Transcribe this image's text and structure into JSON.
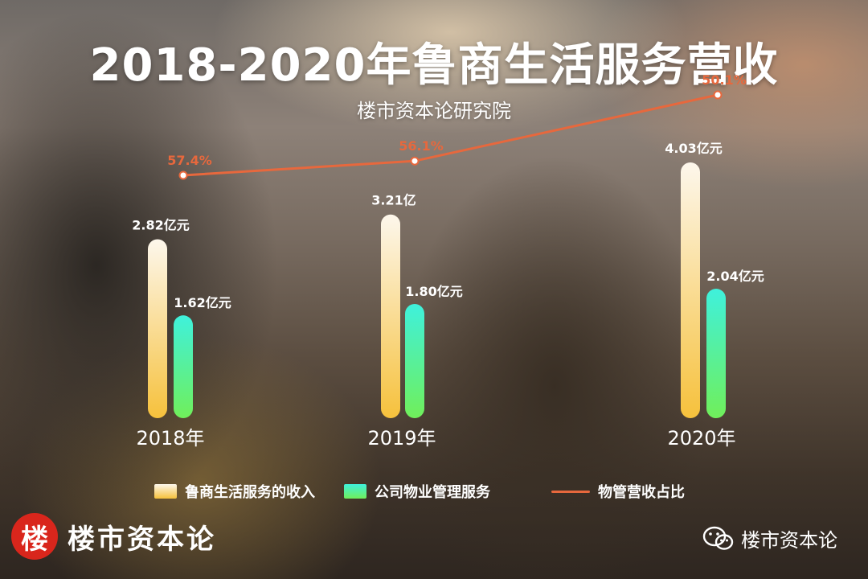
{
  "title": "2018-2020年鲁商生活服务营收",
  "subtitle": "楼市资本论研究院",
  "colors": {
    "revenue_top": "#fdf7ec",
    "revenue_bottom": "#f6c13c",
    "property_top": "#3ff1dc",
    "property_bottom": "#70ef5a",
    "ratio_line": "#e7683d"
  },
  "chart_data": {
    "type": "bar",
    "categories": [
      "2018年",
      "2019年",
      "2020年"
    ],
    "series": [
      {
        "name": "鲁商生活服务的收入",
        "type": "bar",
        "values": [
          2.82,
          3.21,
          4.03
        ],
        "data_labels": [
          "2.82亿元",
          "3.21亿",
          "4.03亿元"
        ]
      },
      {
        "name": "公司物业管理服务",
        "type": "bar",
        "values": [
          1.62,
          1.8,
          2.04
        ],
        "data_labels": [
          "1.62亿元",
          "1.80亿元",
          "2.04亿元"
        ]
      },
      {
        "name": "物管营收占比",
        "type": "line",
        "values": [
          57.4,
          56.1,
          50.1
        ],
        "data_labels": [
          "57.4%",
          "56.1%",
          "50.1%"
        ]
      }
    ],
    "legend_position": "bottom",
    "grid": false
  },
  "legend": [
    "鲁商生活服务的收入",
    "公司物业管理服务",
    "物管营收占比"
  ],
  "logo": {
    "mark": "楼",
    "text": "楼市资本论"
  },
  "watermark": {
    "icon": "wechat-icon",
    "text": "楼市资本论"
  }
}
